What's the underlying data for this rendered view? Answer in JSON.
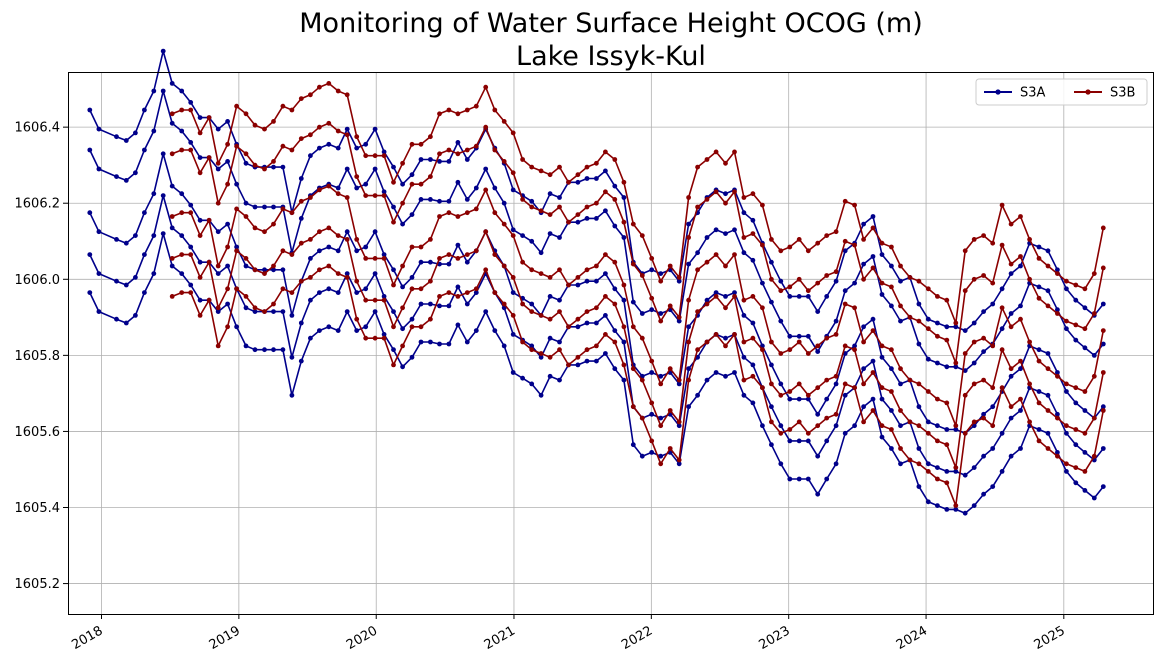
{
  "chart_data": {
    "type": "line",
    "title": "Monitoring of Water Surface Height OCOG (m)",
    "subtitle": "Lake Issyk-Kul",
    "xlabel": "",
    "ylabel": "",
    "ylim": [
      1605.12,
      1606.545
    ],
    "xlim": [
      "2017-10-04",
      "2025-08-26"
    ],
    "y_ticks": [
      "1605.2",
      "1605.4",
      "1605.6",
      "1605.8",
      "1606.0",
      "1606.2",
      "1606.4"
    ],
    "x_ticks": [
      "2018",
      "2019",
      "2020",
      "2021",
      "2022",
      "2023",
      "2024",
      "2025"
    ],
    "grid": true,
    "legend_position": "top-right",
    "series": [
      {
        "name": "S3A",
        "color": "#00008b",
        "x": [
          "2017-12-01",
          "2017-12-25",
          "2018-02-10",
          "2018-03-08",
          "2018-04-01",
          "2018-04-25",
          "2018-05-20",
          "2018-06-14",
          "2018-07-08",
          "2018-08-02",
          "2018-08-26",
          "2018-09-20",
          "2018-10-14",
          "2018-11-07",
          "2018-12-02",
          "2018-12-26",
          "2019-01-20",
          "2019-02-13",
          "2019-03-10",
          "2019-04-03",
          "2019-04-28",
          "2019-05-22",
          "2019-06-16",
          "2019-07-10",
          "2019-08-03",
          "2019-08-28",
          "2019-09-22",
          "2019-10-16",
          "2019-11-10",
          "2019-12-04",
          "2019-12-29",
          "2020-01-22",
          "2020-02-16",
          "2020-03-11",
          "2020-04-05",
          "2020-04-29",
          "2020-05-24",
          "2020-06-17",
          "2020-07-12",
          "2020-08-05",
          "2020-08-30",
          "2020-09-23",
          "2020-10-18",
          "2020-11-11",
          "2020-12-06",
          "2020-12-30",
          "2021-01-24",
          "2021-02-17",
          "2021-03-14",
          "2021-04-07",
          "2021-05-02",
          "2021-05-26",
          "2021-06-20",
          "2021-07-14",
          "2021-08-08",
          "2021-09-01",
          "2021-09-26",
          "2021-10-20",
          "2021-11-14",
          "2021-12-08",
          "2022-01-02",
          "2022-01-26",
          "2022-02-20",
          "2022-03-16",
          "2022-04-10",
          "2022-05-04",
          "2022-05-29",
          "2022-06-22",
          "2022-07-17",
          "2022-08-10",
          "2022-09-04",
          "2022-09-28",
          "2022-10-23",
          "2022-11-16",
          "2022-12-11",
          "2023-01-04",
          "2023-01-29",
          "2023-02-22",
          "2023-03-19",
          "2023-04-12",
          "2023-05-07",
          "2023-05-31",
          "2023-06-25",
          "2023-07-19",
          "2023-08-13",
          "2023-09-06",
          "2023-10-01",
          "2023-10-25",
          "2023-11-19",
          "2023-12-13",
          "2024-01-07",
          "2024-01-31",
          "2024-02-25",
          "2024-03-20",
          "2024-04-14",
          "2024-05-08",
          "2024-06-02",
          "2024-06-26",
          "2024-07-21",
          "2024-08-14",
          "2024-09-08",
          "2024-10-02",
          "2024-10-27",
          "2024-11-20",
          "2024-12-15",
          "2025-01-08",
          "2025-02-02",
          "2025-02-26",
          "2025-03-23",
          "2025-04-16"
        ],
        "values": [
          1606.27,
          1606.22,
          1606.2,
          1606.19,
          1606.21,
          1606.27,
          1606.32,
          1606.425,
          1606.34,
          1606.32,
          1606.29,
          1606.25,
          1606.25,
          1606.22,
          1606.24,
          1606.18,
          1606.13,
          1606.12,
          1606.12,
          1606.12,
          1606.12,
          1606.0,
          1606.09,
          1606.15,
          1606.17,
          1606.18,
          1606.17,
          1606.22,
          1606.17,
          1606.18,
          1606.22,
          1606.16,
          1606.12,
          1606.075,
          1606.1,
          1606.14,
          1606.14,
          1606.135,
          1606.135,
          1606.185,
          1606.14,
          1606.17,
          1606.22,
          1606.17,
          1606.13,
          1606.06,
          1606.045,
          1606.03,
          1606.0,
          1606.05,
          1606.04,
          1606.08,
          1606.08,
          1606.09,
          1606.09,
          1606.11,
          1606.07,
          1606.04,
          1605.87,
          1605.84,
          1605.85,
          1605.84,
          1605.85,
          1605.82,
          1605.97,
          1606.0,
          1606.04,
          1606.06,
          1606.05,
          1606.06,
          1606.0,
          1605.98,
          1605.92,
          1605.87,
          1605.82,
          1605.78,
          1605.78,
          1605.78,
          1605.74,
          1605.78,
          1605.82,
          1605.9,
          1605.92,
          1605.97,
          1605.99,
          1605.89,
          1605.86,
          1605.82,
          1605.83,
          1605.76,
          1605.72,
          1605.71,
          1605.7,
          1605.7,
          1605.69,
          1605.71,
          1605.74,
          1605.76,
          1605.8,
          1605.84,
          1605.86,
          1605.92,
          1605.91,
          1605.9,
          1605.85,
          1605.8,
          1605.77,
          1605.75,
          1605.73,
          1605.76
        ]
      },
      {
        "name": "S3B",
        "color": "#8b0000",
        "x": [
          "2018-07-08",
          "2018-08-02",
          "2018-08-26",
          "2018-09-20",
          "2018-10-14",
          "2018-11-07",
          "2018-12-02",
          "2018-12-26",
          "2019-01-20",
          "2019-02-13",
          "2019-03-10",
          "2019-04-03",
          "2019-04-28",
          "2019-05-22",
          "2019-06-16",
          "2019-07-10",
          "2019-08-03",
          "2019-08-28",
          "2019-09-22",
          "2019-10-16",
          "2019-11-10",
          "2019-12-04",
          "2019-12-29",
          "2020-01-22",
          "2020-02-16",
          "2020-03-11",
          "2020-04-05",
          "2020-04-29",
          "2020-05-24",
          "2020-06-17",
          "2020-07-12",
          "2020-08-05",
          "2020-08-30",
          "2020-09-23",
          "2020-10-18",
          "2020-11-11",
          "2020-12-06",
          "2020-12-30",
          "2021-01-24",
          "2021-02-17",
          "2021-03-14",
          "2021-04-07",
          "2021-05-02",
          "2021-05-26",
          "2021-06-20",
          "2021-07-14",
          "2021-08-08",
          "2021-09-01",
          "2021-09-26",
          "2021-10-20",
          "2021-11-14",
          "2021-12-08",
          "2022-01-02",
          "2022-01-26",
          "2022-02-20",
          "2022-03-16",
          "2022-04-10",
          "2022-05-04",
          "2022-05-29",
          "2022-06-22",
          "2022-07-17",
          "2022-08-10",
          "2022-09-04",
          "2022-09-28",
          "2022-10-23",
          "2022-11-16",
          "2022-12-11",
          "2023-01-04",
          "2023-01-29",
          "2023-02-22",
          "2023-03-19",
          "2023-04-12",
          "2023-05-07",
          "2023-05-31",
          "2023-06-25",
          "2023-07-19",
          "2023-08-13",
          "2023-09-06",
          "2023-10-01",
          "2023-10-25",
          "2023-11-19",
          "2023-12-13",
          "2024-01-07",
          "2024-01-31",
          "2024-02-25",
          "2024-03-20",
          "2024-04-14",
          "2024-05-08",
          "2024-06-02",
          "2024-06-26",
          "2024-07-21",
          "2024-08-14",
          "2024-09-08",
          "2024-10-02",
          "2024-10-27",
          "2024-11-20",
          "2024-12-15",
          "2025-01-08",
          "2025-02-02",
          "2025-02-26",
          "2025-03-23",
          "2025-04-16"
        ],
        "values": [
          1606.26,
          1606.27,
          1606.27,
          1606.21,
          1606.25,
          1606.13,
          1606.18,
          1606.28,
          1606.26,
          1606.23,
          1606.22,
          1606.24,
          1606.28,
          1606.27,
          1606.3,
          1606.31,
          1606.33,
          1606.34,
          1606.32,
          1606.31,
          1606.2,
          1606.15,
          1606.15,
          1606.15,
          1606.08,
          1606.13,
          1606.18,
          1606.18,
          1606.2,
          1606.26,
          1606.27,
          1606.26,
          1606.27,
          1606.28,
          1606.33,
          1606.27,
          1606.24,
          1606.21,
          1606.14,
          1606.12,
          1606.11,
          1606.1,
          1606.12,
          1606.08,
          1606.1,
          1606.12,
          1606.13,
          1606.16,
          1606.14,
          1606.08,
          1605.97,
          1605.94,
          1605.88,
          1605.82,
          1605.86,
          1605.83,
          1606.04,
          1606.12,
          1606.14,
          1606.16,
          1606.13,
          1606.16,
          1606.04,
          1606.05,
          1606.02,
          1605.93,
          1605.9,
          1605.91,
          1605.93,
          1605.9,
          1605.92,
          1605.94,
          1605.95,
          1606.03,
          1606.02,
          1605.93,
          1605.96,
          1605.92,
          1605.91,
          1605.86,
          1605.83,
          1605.82,
          1605.8,
          1605.78,
          1605.77,
          1605.71,
          1605.9,
          1605.93,
          1605.94,
          1605.92,
          1606.02,
          1605.97,
          1605.99,
          1605.93,
          1605.88,
          1605.86,
          1605.84,
          1605.82,
          1605.81,
          1605.8,
          1605.84,
          1605.96
        ]
      }
    ]
  }
}
